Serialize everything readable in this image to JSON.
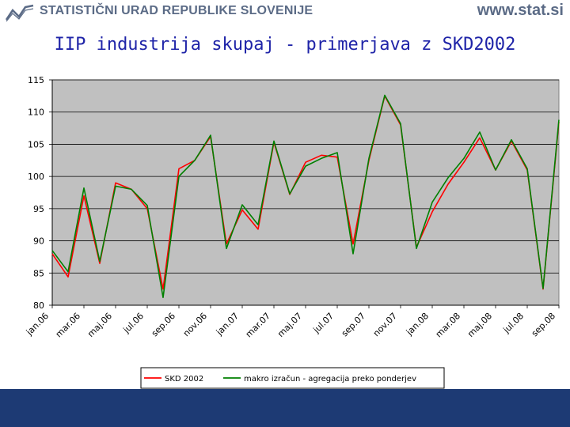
{
  "header": {
    "organization": "STATISTIČNI URAD REPUBLIKE SLOVENIJE",
    "website": "www.stat.si"
  },
  "colors": {
    "plot_background": "#c0c0c0",
    "series_skd": "#ff0000",
    "series_makro": "#008000",
    "title": "#1f24a8",
    "footer": "#1d3a74"
  },
  "chart_data": {
    "type": "line",
    "title": "IIP industrija skupaj - primerjava z SKD2002",
    "xlabel": "",
    "ylabel": "",
    "ylim": [
      80,
      115
    ],
    "yticks": [
      80,
      85,
      90,
      95,
      100,
      105,
      110,
      115
    ],
    "grid": true,
    "legend_position": "bottom-center",
    "x_tick_labels": [
      "jan.06",
      "mar.06",
      "maj.06",
      "jul.06",
      "sep.06",
      "nov.06",
      "jan.07",
      "mar.07",
      "maj.07",
      "jul.07",
      "sep.07",
      "nov.07",
      "jan.08",
      "mar.08",
      "maj.08",
      "jul.08",
      "sep.08"
    ],
    "categories": [
      "jan.06",
      "feb.06",
      "mar.06",
      "apr.06",
      "maj.06",
      "jun.06",
      "jul.06",
      "avg.06",
      "sep.06",
      "okt.06",
      "nov.06",
      "dec.06",
      "jan.07",
      "feb.07",
      "mar.07",
      "apr.07",
      "maj.07",
      "jun.07",
      "jul.07",
      "avg.07",
      "sep.07",
      "okt.07",
      "nov.07",
      "dec.07",
      "jan.08",
      "feb.08",
      "mar.08",
      "apr.08",
      "maj.08",
      "jun.08",
      "jul.08",
      "avg.08",
      "sep.08"
    ],
    "series": [
      {
        "name": "SKD 2002",
        "color": "#ff0000",
        "values": [
          88.0,
          84.4,
          97.0,
          86.5,
          99.0,
          98.0,
          95.0,
          82.5,
          101.2,
          102.5,
          106.2,
          89.5,
          94.8,
          91.8,
          105.3,
          97.2,
          102.2,
          103.3,
          103.0,
          89.5,
          102.5,
          112.5,
          108.0,
          89.0,
          94.5,
          98.8,
          102.2,
          106.0,
          101.0,
          105.5,
          101.0,
          82.5,
          108.5
        ]
      },
      {
        "name": "makro izračun - agregacija preko ponderjev",
        "color": "#008000",
        "values": [
          88.5,
          85.2,
          98.2,
          86.8,
          98.5,
          98.0,
          95.5,
          81.2,
          100.0,
          102.5,
          106.4,
          88.8,
          95.6,
          92.5,
          105.5,
          97.3,
          101.6,
          102.8,
          103.7,
          88.0,
          102.8,
          112.6,
          108.2,
          88.8,
          96.0,
          99.8,
          102.8,
          106.9,
          101.0,
          105.7,
          101.2,
          82.6,
          108.8
        ]
      }
    ]
  }
}
